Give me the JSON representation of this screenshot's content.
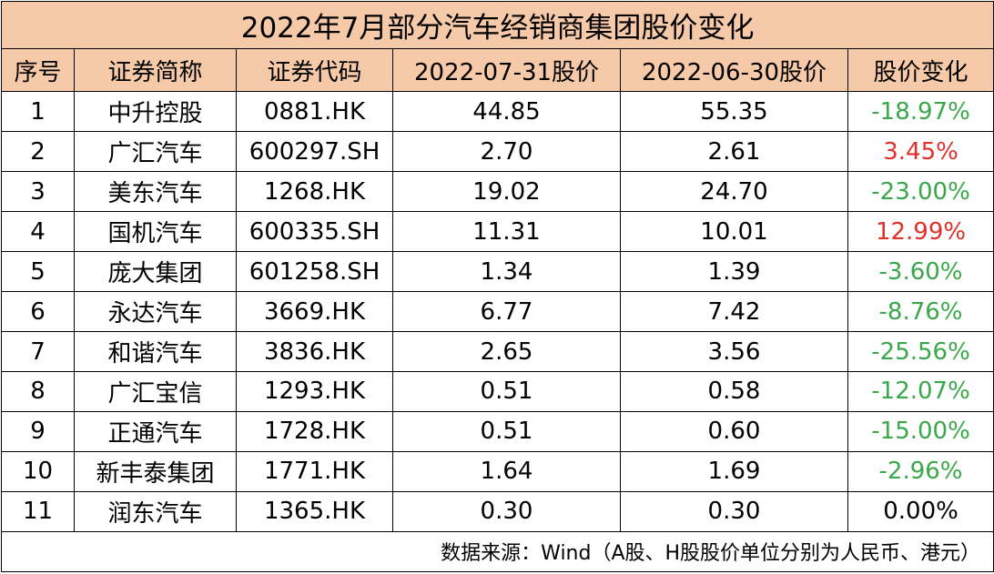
{
  "title": "2022年7月部分汽车经销商集团股价变化",
  "table": {
    "headers": [
      "序号",
      "证券简称",
      "证券代码",
      "2022-07-31股价",
      "2022-06-30股价",
      "股价变化"
    ],
    "rows": [
      [
        "1",
        "中升控股",
        "0881.HK",
        "44.85",
        "55.35",
        "-18.97%"
      ],
      [
        "2",
        "广汇汽车",
        "600297.SH",
        "2.70",
        "2.61",
        "3.45%"
      ],
      [
        "3",
        "美东汽车",
        "1268.HK",
        "19.02",
        "24.70",
        "-23.00%"
      ],
      [
        "4",
        "国机汽车",
        "600335.SH",
        "11.31",
        "10.01",
        "12.99%"
      ],
      [
        "5",
        "庞大集团",
        "601258.SH",
        "1.34",
        "1.39",
        "-3.60%"
      ],
      [
        "6",
        "永达汽车",
        "3669.HK",
        "6.77",
        "7.42",
        "-8.76%"
      ],
      [
        "7",
        "和谐汽车",
        "3836.HK",
        "2.65",
        "3.56",
        "-25.56%"
      ],
      [
        "8",
        "广汇宝信",
        "1293.HK",
        "0.51",
        "0.58",
        "-12.07%"
      ],
      [
        "9",
        "正通汽车",
        "1728.HK",
        "0.51",
        "0.60",
        "-15.00%"
      ],
      [
        "10",
        "新丰泰集团",
        "1771.HK",
        "1.64",
        "1.69",
        "-2.96%"
      ],
      [
        "11",
        "润东汽车",
        "1365.HK",
        "0.30",
        "0.30",
        "0.00%"
      ]
    ],
    "change_colors": [
      "#3aa84a",
      "#e0302a",
      "#3aa84a",
      "#e0302a",
      "#3aa84a",
      "#3aa84a",
      "#3aa84a",
      "#3aa84a",
      "#3aa84a",
      "#3aa84a",
      "#000000"
    ]
  },
  "source": "数据来源：Wind（A股、H股股价单位分别为人民币、港元）"
}
